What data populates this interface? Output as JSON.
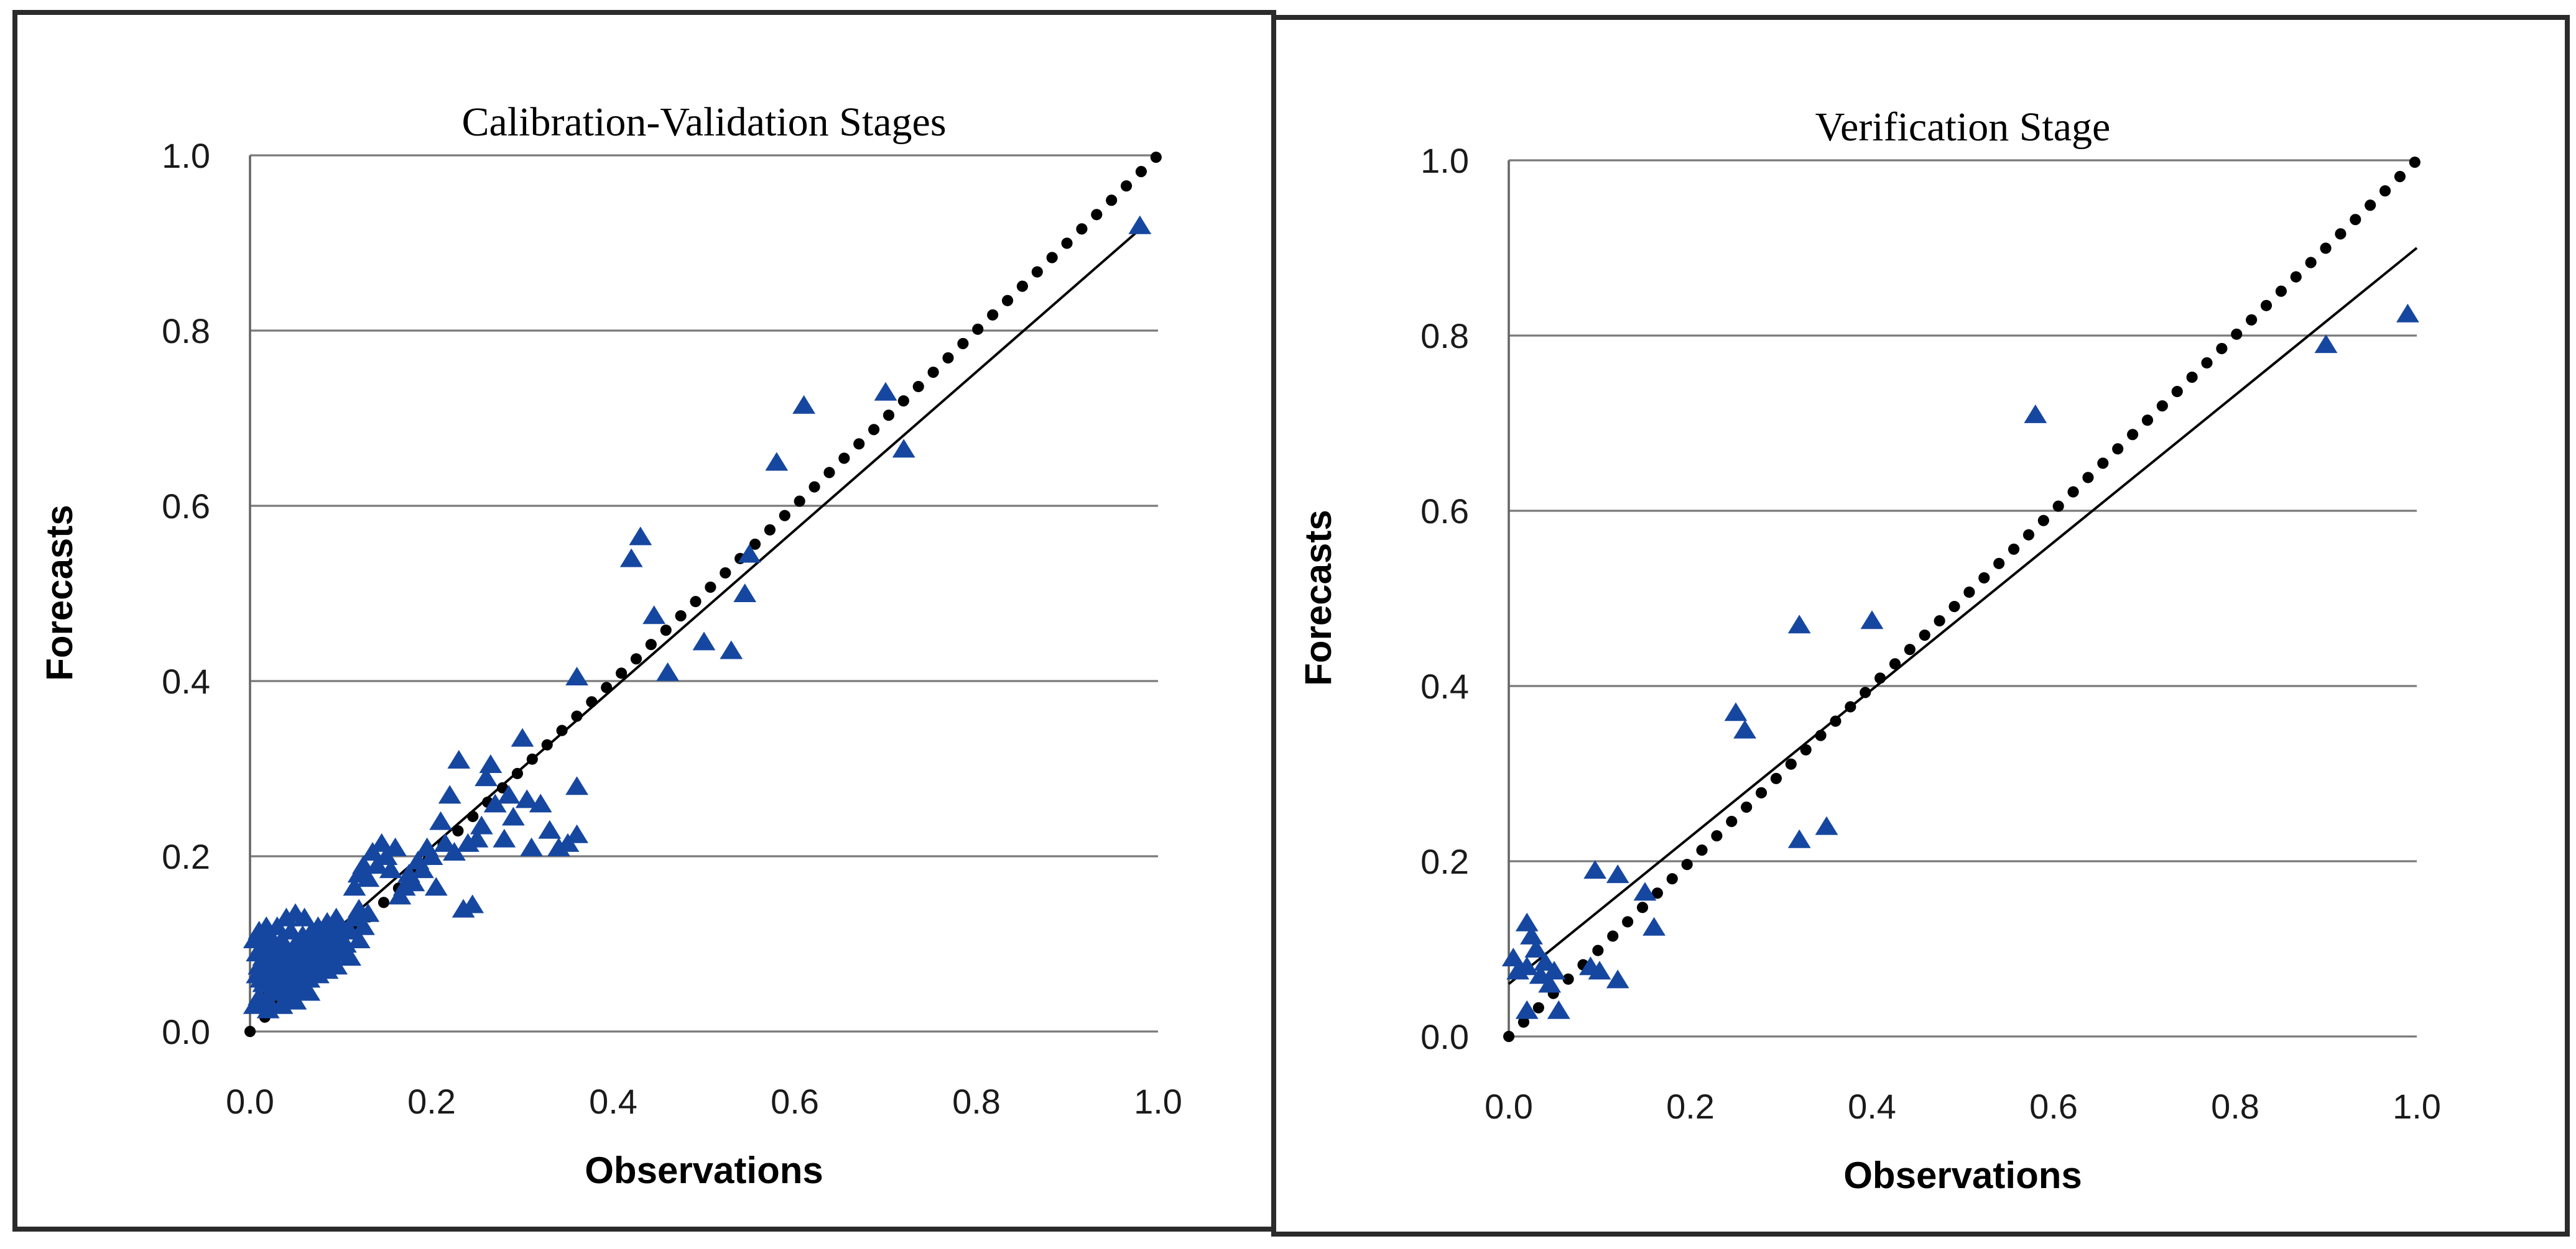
{
  "figure": {
    "panel_count": 2,
    "background": "#ffffff",
    "border_color": "#2b2b2b",
    "gridline_color": "#7a7a7a",
    "marker_color": "#1647A0",
    "line_color": "#000000"
  },
  "chart_data": [
    {
      "type": "scatter",
      "title": "Calibration-Validation Stages",
      "xlabel": "Observations",
      "ylabel": "Forecasts",
      "xlim": [
        0.0,
        1.0
      ],
      "ylim": [
        0.0,
        1.0
      ],
      "x_ticks": [
        "0.0",
        "0.2",
        "0.4",
        "0.6",
        "0.8",
        "1.0"
      ],
      "y_ticks": [
        "0.0",
        "0.2",
        "0.4",
        "0.6",
        "0.8",
        "1.0"
      ],
      "grid": "horizontal",
      "legend": "none",
      "marker": {
        "shape": "triangle-up",
        "color": "#1647A0"
      },
      "identity_line": {
        "style": "dotted",
        "color": "#000000",
        "from": [
          0.0,
          0.0
        ],
        "to": [
          1.0,
          1.0
        ]
      },
      "trend_line": {
        "style": "solid",
        "color": "#000000",
        "from": [
          0.0,
          0.03
        ],
        "to": [
          0.985,
          0.92
        ]
      },
      "points": [
        [
          0.005,
          0.105
        ],
        [
          0.008,
          0.09
        ],
        [
          0.01,
          0.115
        ],
        [
          0.01,
          0.075
        ],
        [
          0.012,
          0.06
        ],
        [
          0.015,
          0.1
        ],
        [
          0.015,
          0.085
        ],
        [
          0.018,
          0.12
        ],
        [
          0.02,
          0.07
        ],
        [
          0.02,
          0.095
        ],
        [
          0.022,
          0.11
        ],
        [
          0.025,
          0.05
        ],
        [
          0.025,
          0.08
        ],
        [
          0.028,
          0.1
        ],
        [
          0.03,
          0.065
        ],
        [
          0.03,
          0.09
        ],
        [
          0.03,
          0.12
        ],
        [
          0.032,
          0.075
        ],
        [
          0.035,
          0.055
        ],
        [
          0.035,
          0.105
        ],
        [
          0.038,
          0.085
        ],
        [
          0.04,
          0.07
        ],
        [
          0.04,
          0.095
        ],
        [
          0.04,
          0.13
        ],
        [
          0.042,
          0.06
        ],
        [
          0.045,
          0.08
        ],
        [
          0.045,
          0.115
        ],
        [
          0.048,
          0.09
        ],
        [
          0.05,
          0.065
        ],
        [
          0.05,
          0.1
        ],
        [
          0.05,
          0.135
        ],
        [
          0.052,
          0.075
        ],
        [
          0.055,
          0.055
        ],
        [
          0.055,
          0.09
        ],
        [
          0.058,
          0.11
        ],
        [
          0.06,
          0.07
        ],
        [
          0.06,
          0.1
        ],
        [
          0.06,
          0.13
        ],
        [
          0.062,
          0.085
        ],
        [
          0.065,
          0.06
        ],
        [
          0.065,
          0.095
        ],
        [
          0.068,
          0.115
        ],
        [
          0.07,
          0.075
        ],
        [
          0.07,
          0.105
        ],
        [
          0.072,
          0.09
        ],
        [
          0.075,
          0.065
        ],
        [
          0.075,
          0.12
        ],
        [
          0.078,
          0.1
        ],
        [
          0.08,
          0.08
        ],
        [
          0.08,
          0.11
        ],
        [
          0.082,
          0.095
        ],
        [
          0.085,
          0.07
        ],
        [
          0.085,
          0.125
        ],
        [
          0.088,
          0.105
        ],
        [
          0.09,
          0.085
        ],
        [
          0.09,
          0.115
        ],
        [
          0.092,
          0.1
        ],
        [
          0.095,
          0.075
        ],
        [
          0.095,
          0.13
        ],
        [
          0.098,
          0.11
        ],
        [
          0.1,
          0.09
        ],
        [
          0.1,
          0.12
        ],
        [
          0.105,
          0.1
        ],
        [
          0.11,
          0.115
        ],
        [
          0.11,
          0.085
        ],
        [
          0.115,
          0.13
        ],
        [
          0.12,
          0.105
        ],
        [
          0.12,
          0.14
        ],
        [
          0.125,
          0.12
        ],
        [
          0.13,
          0.135
        ],
        [
          0.01,
          0.04
        ],
        [
          0.02,
          0.035
        ],
        [
          0.03,
          0.045
        ],
        [
          0.04,
          0.04
        ],
        [
          0.05,
          0.045
        ],
        [
          0.06,
          0.05
        ],
        [
          0.015,
          0.055
        ],
        [
          0.025,
          0.06
        ],
        [
          0.045,
          0.055
        ],
        [
          0.008,
          0.065
        ],
        [
          0.02,
          0.025
        ],
        [
          0.035,
          0.03
        ],
        [
          0.05,
          0.035
        ],
        [
          0.065,
          0.045
        ],
        [
          0.005,
          0.03
        ],
        [
          0.115,
          0.165
        ],
        [
          0.12,
          0.18
        ],
        [
          0.125,
          0.19
        ],
        [
          0.13,
          0.175
        ],
        [
          0.135,
          0.205
        ],
        [
          0.14,
          0.19
        ],
        [
          0.145,
          0.215
        ],
        [
          0.15,
          0.2
        ],
        [
          0.155,
          0.185
        ],
        [
          0.16,
          0.21
        ],
        [
          0.165,
          0.155
        ],
        [
          0.17,
          0.165
        ],
        [
          0.175,
          0.18
        ],
        [
          0.18,
          0.17
        ],
        [
          0.185,
          0.195
        ],
        [
          0.19,
          0.185
        ],
        [
          0.195,
          0.21
        ],
        [
          0.2,
          0.2
        ],
        [
          0.205,
          0.165
        ],
        [
          0.21,
          0.24
        ],
        [
          0.215,
          0.215
        ],
        [
          0.22,
          0.27
        ],
        [
          0.225,
          0.205
        ],
        [
          0.23,
          0.31
        ],
        [
          0.235,
          0.14
        ],
        [
          0.24,
          0.215
        ],
        [
          0.245,
          0.145
        ],
        [
          0.25,
          0.22
        ],
        [
          0.255,
          0.235
        ],
        [
          0.26,
          0.29
        ],
        [
          0.265,
          0.305
        ],
        [
          0.27,
          0.26
        ],
        [
          0.28,
          0.22
        ],
        [
          0.285,
          0.27
        ],
        [
          0.29,
          0.245
        ],
        [
          0.3,
          0.335
        ],
        [
          0.305,
          0.265
        ],
        [
          0.31,
          0.21
        ],
        [
          0.32,
          0.26
        ],
        [
          0.33,
          0.23
        ],
        [
          0.34,
          0.21
        ],
        [
          0.35,
          0.215
        ],
        [
          0.36,
          0.225
        ],
        [
          0.36,
          0.28
        ],
        [
          0.36,
          0.405
        ],
        [
          0.46,
          0.41
        ],
        [
          0.5,
          0.445
        ],
        [
          0.53,
          0.435
        ],
        [
          0.42,
          0.54
        ],
        [
          0.43,
          0.565
        ],
        [
          0.445,
          0.475
        ],
        [
          0.545,
          0.5
        ],
        [
          0.55,
          0.545
        ],
        [
          0.58,
          0.65
        ],
        [
          0.61,
          0.715
        ],
        [
          0.7,
          0.73
        ],
        [
          0.72,
          0.665
        ],
        [
          0.98,
          0.92
        ]
      ]
    },
    {
      "type": "scatter",
      "title": "Verification Stage",
      "xlabel": "Observations",
      "ylabel": "Forecasts",
      "xlim": [
        0.0,
        1.0
      ],
      "ylim": [
        0.0,
        1.0
      ],
      "x_ticks": [
        "0.0",
        "0.2",
        "0.4",
        "0.6",
        "0.8",
        "1.0"
      ],
      "y_ticks": [
        "0.0",
        "0.2",
        "0.4",
        "0.6",
        "0.8",
        "1.0"
      ],
      "grid": "horizontal",
      "legend": "none",
      "marker": {
        "shape": "triangle-up",
        "color": "#1647A0"
      },
      "identity_line": {
        "style": "dotted",
        "color": "#000000",
        "from": [
          0.0,
          0.0
        ],
        "to": [
          1.0,
          1.0
        ]
      },
      "trend_line": {
        "style": "solid",
        "color": "#000000",
        "from": [
          0.0,
          0.06
        ],
        "to": [
          1.0,
          0.9
        ]
      },
      "points": [
        [
          0.005,
          0.09
        ],
        [
          0.01,
          0.075
        ],
        [
          0.02,
          0.13
        ],
        [
          0.025,
          0.115
        ],
        [
          0.03,
          0.1
        ],
        [
          0.02,
          0.08
        ],
        [
          0.035,
          0.07
        ],
        [
          0.04,
          0.085
        ],
        [
          0.05,
          0.075
        ],
        [
          0.02,
          0.03
        ],
        [
          0.055,
          0.03
        ],
        [
          0.045,
          0.06
        ],
        [
          0.09,
          0.08
        ],
        [
          0.1,
          0.075
        ],
        [
          0.12,
          0.065
        ],
        [
          0.095,
          0.19
        ],
        [
          0.12,
          0.185
        ],
        [
          0.15,
          0.165
        ],
        [
          0.16,
          0.125
        ],
        [
          0.32,
          0.225
        ],
        [
          0.35,
          0.24
        ],
        [
          0.25,
          0.37
        ],
        [
          0.26,
          0.35
        ],
        [
          0.32,
          0.47
        ],
        [
          0.4,
          0.475
        ],
        [
          0.58,
          0.71
        ],
        [
          0.9,
          0.79
        ],
        [
          0.99,
          0.825
        ]
      ]
    }
  ]
}
